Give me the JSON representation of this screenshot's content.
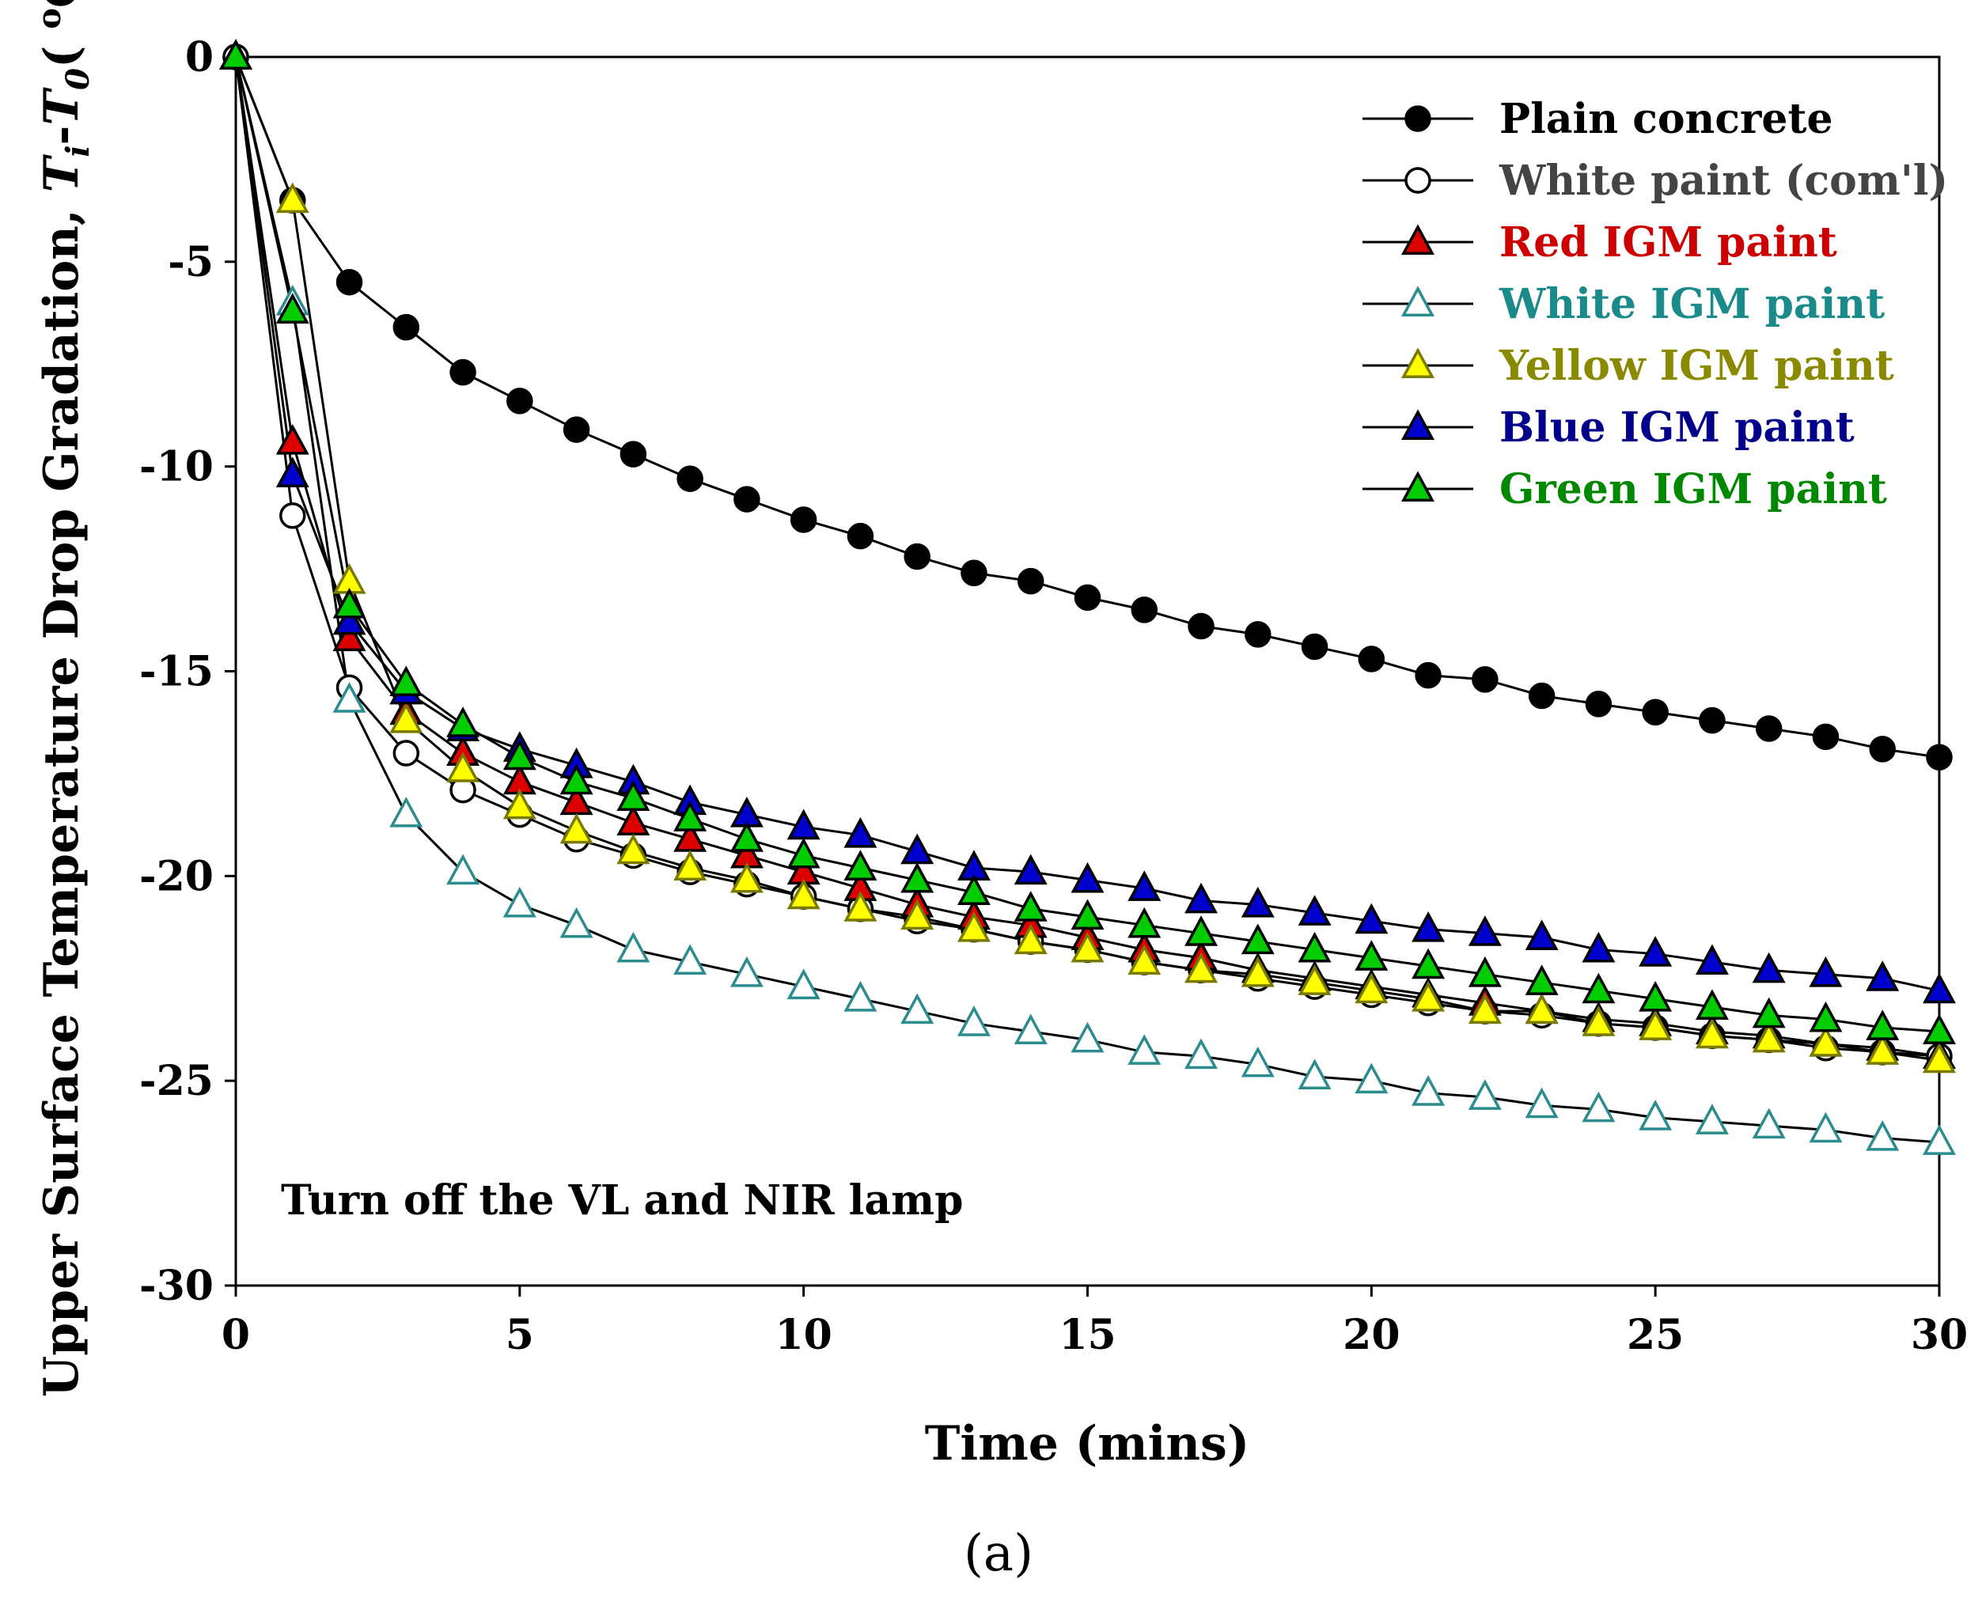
{
  "chart_data": {
    "type": "line",
    "xlabel": "Time (mins)",
    "ylabel": {
      "main": "Upper Surface Temperature Drop Gradation, ",
      "t1": "T",
      "i": "i",
      "dash": "-",
      "t2": "T",
      "zero": "0",
      "paren_open": "( ",
      "deg": "o",
      "unit": "C)"
    },
    "xlim": [
      0,
      30
    ],
    "ylim": [
      -30,
      0
    ],
    "x_ticks": [
      "0",
      "5",
      "10",
      "15",
      "20",
      "25",
      "30"
    ],
    "y_ticks": [
      "0",
      "-5",
      "-10",
      "-15",
      "-20",
      "-25",
      "-30"
    ],
    "x_tick_values": [
      0,
      5,
      10,
      15,
      20,
      25,
      30
    ],
    "y_tick_values": [
      0,
      -5,
      -10,
      -15,
      -20,
      -25,
      -30
    ],
    "grid": false,
    "legend_position": "top-right",
    "annotation": "Turn off the VL and NIR lamp",
    "sublabel": "(a)",
    "x": [
      0,
      1,
      2,
      3,
      4,
      5,
      6,
      7,
      8,
      9,
      10,
      11,
      12,
      13,
      14,
      15,
      16,
      17,
      18,
      19,
      20,
      21,
      22,
      23,
      24,
      25,
      26,
      27,
      28,
      29,
      30
    ],
    "series": [
      {
        "name": "Plain concrete",
        "marker": "circle",
        "fill": "#000000",
        "stroke": "#000000",
        "text_color": "#000000",
        "values": [
          0,
          -3.5,
          -5.5,
          -6.6,
          -7.7,
          -8.4,
          -9.1,
          -9.7,
          -10.3,
          -10.8,
          -11.3,
          -11.7,
          -12.2,
          -12.6,
          -12.8,
          -13.2,
          -13.5,
          -13.9,
          -14.1,
          -14.4,
          -14.7,
          -15.1,
          -15.2,
          -15.6,
          -15.8,
          -16.0,
          -16.2,
          -16.4,
          -16.6,
          -16.9,
          -17.1
        ]
      },
      {
        "name": "White paint (com'l)",
        "marker": "circle",
        "fill": "#ffffff",
        "stroke": "#000000",
        "text_color": "#444444",
        "values": [
          0,
          -11.2,
          -15.4,
          -17.0,
          -17.9,
          -18.5,
          -19.1,
          -19.5,
          -19.9,
          -20.2,
          -20.5,
          -20.8,
          -21.1,
          -21.3,
          -21.6,
          -21.8,
          -22.1,
          -22.3,
          -22.5,
          -22.7,
          -22.9,
          -23.1,
          -23.3,
          -23.4,
          -23.6,
          -23.7,
          -23.9,
          -24.0,
          -24.2,
          -24.3,
          -24.4
        ]
      },
      {
        "name": "Red IGM paint",
        "marker": "triangle",
        "fill": "#dd0000",
        "stroke": "#000000",
        "text_color": "#cc0000",
        "values": [
          0,
          -9.4,
          -14.2,
          -16.0,
          -17.0,
          -17.7,
          -18.2,
          -18.7,
          -19.1,
          -19.5,
          -19.9,
          -20.3,
          -20.7,
          -21.0,
          -21.2,
          -21.5,
          -21.8,
          -22.0,
          -22.3,
          -22.5,
          -22.7,
          -22.9,
          -23.1,
          -23.3,
          -23.5,
          -23.6,
          -23.8,
          -23.9,
          -24.1,
          -24.2,
          -24.4
        ]
      },
      {
        "name": "White IGM paint",
        "marker": "triangle",
        "fill": "#ffffff",
        "stroke": "#2a8c8c",
        "text_color": "#1a8a8a",
        "values": [
          0,
          -6.0,
          -15.7,
          -18.5,
          -19.9,
          -20.7,
          -21.2,
          -21.8,
          -22.1,
          -22.4,
          -22.7,
          -23.0,
          -23.3,
          -23.6,
          -23.8,
          -24.0,
          -24.3,
          -24.4,
          -24.6,
          -24.9,
          -25.0,
          -25.3,
          -25.4,
          -25.6,
          -25.7,
          -25.9,
          -26.0,
          -26.1,
          -26.2,
          -26.4,
          -26.5
        ]
      },
      {
        "name": "Yellow IGM paint",
        "marker": "triangle",
        "fill": "#ffff00",
        "stroke": "#7a7a00",
        "text_color": "#8a8a00",
        "values": [
          0,
          -3.5,
          -12.8,
          -16.2,
          -17.4,
          -18.3,
          -18.9,
          -19.4,
          -19.8,
          -20.1,
          -20.5,
          -20.8,
          -21.0,
          -21.3,
          -21.6,
          -21.8,
          -22.1,
          -22.3,
          -22.4,
          -22.6,
          -22.8,
          -23.0,
          -23.3,
          -23.3,
          -23.6,
          -23.7,
          -23.9,
          -24.0,
          -24.1,
          -24.3,
          -24.5
        ]
      },
      {
        "name": "Blue IGM paint",
        "marker": "triangle",
        "fill": "#0000cc",
        "stroke": "#000000",
        "text_color": "#00008b",
        "values": [
          0,
          -10.2,
          -13.8,
          -15.5,
          -16.4,
          -16.9,
          -17.3,
          -17.7,
          -18.2,
          -18.5,
          -18.8,
          -19.0,
          -19.4,
          -19.8,
          -19.9,
          -20.1,
          -20.3,
          -20.6,
          -20.7,
          -20.9,
          -21.1,
          -21.3,
          -21.4,
          -21.5,
          -21.8,
          -21.9,
          -22.1,
          -22.3,
          -22.4,
          -22.5,
          -22.8
        ]
      },
      {
        "name": "Green IGM paint",
        "marker": "triangle",
        "fill": "#00cc00",
        "stroke": "#000000",
        "text_color": "#008800",
        "values": [
          0,
          -6.2,
          -13.4,
          -15.3,
          -16.3,
          -17.1,
          -17.7,
          -18.1,
          -18.6,
          -19.1,
          -19.5,
          -19.8,
          -20.1,
          -20.4,
          -20.8,
          -21.0,
          -21.2,
          -21.4,
          -21.6,
          -21.8,
          -22.0,
          -22.2,
          -22.4,
          -22.6,
          -22.8,
          -23.0,
          -23.2,
          -23.4,
          -23.5,
          -23.7,
          -23.8
        ]
      }
    ]
  }
}
